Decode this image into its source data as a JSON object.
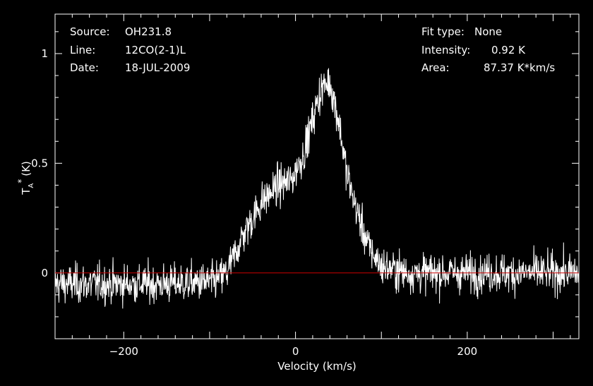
{
  "header": {
    "source_label": "Source:",
    "source_value": "OH231.8",
    "line_label": "Line:",
    "line_value": "12CO(2-1)L",
    "date_label": "Date:",
    "date_value": "18-JUL-2009",
    "fit_label": "Fit type:",
    "fit_value": "None",
    "intensity_label": "Intensity:",
    "intensity_value": "0.92 K",
    "area_label": "Area:",
    "area_value": "87.37 K*km/s"
  },
  "colors": {
    "background": "#000000",
    "spectrum": "#ffffff",
    "baseline": "#cc0000",
    "frame": "#ffffff"
  },
  "chart_data": {
    "type": "line",
    "xlabel": "Velocity (km/s)",
    "ylabel_main": "T",
    "ylabel_sub": "A",
    "ylabel_sup": "*",
    "ylabel_unit": "(K)",
    "xlim": [
      -280,
      330
    ],
    "ylim": [
      -0.3,
      1.18
    ],
    "xticks": [
      -200,
      0,
      200
    ],
    "xtick_labels": [
      "−200",
      "0",
      "200"
    ],
    "yticks": [
      0,
      0.5,
      1
    ],
    "ytick_labels": [
      "0",
      "0.5",
      "1"
    ],
    "baseline_y": 0,
    "grid": false,
    "series": [
      {
        "profile_x": [
          -280,
          -150,
          -95,
          -80,
          -60,
          -40,
          -20,
          -5,
          10,
          20,
          30,
          40,
          50,
          60,
          70,
          85,
          100,
          130,
          200,
          330
        ],
        "profile_y": [
          -0.05,
          -0.05,
          -0.04,
          0.0,
          0.18,
          0.32,
          0.4,
          0.42,
          0.55,
          0.7,
          0.84,
          0.87,
          0.7,
          0.45,
          0.3,
          0.12,
          0.03,
          0.0,
          0.0,
          0.0
        ],
        "noise_rms": 0.08,
        "channel_width": 0.45
      }
    ]
  }
}
